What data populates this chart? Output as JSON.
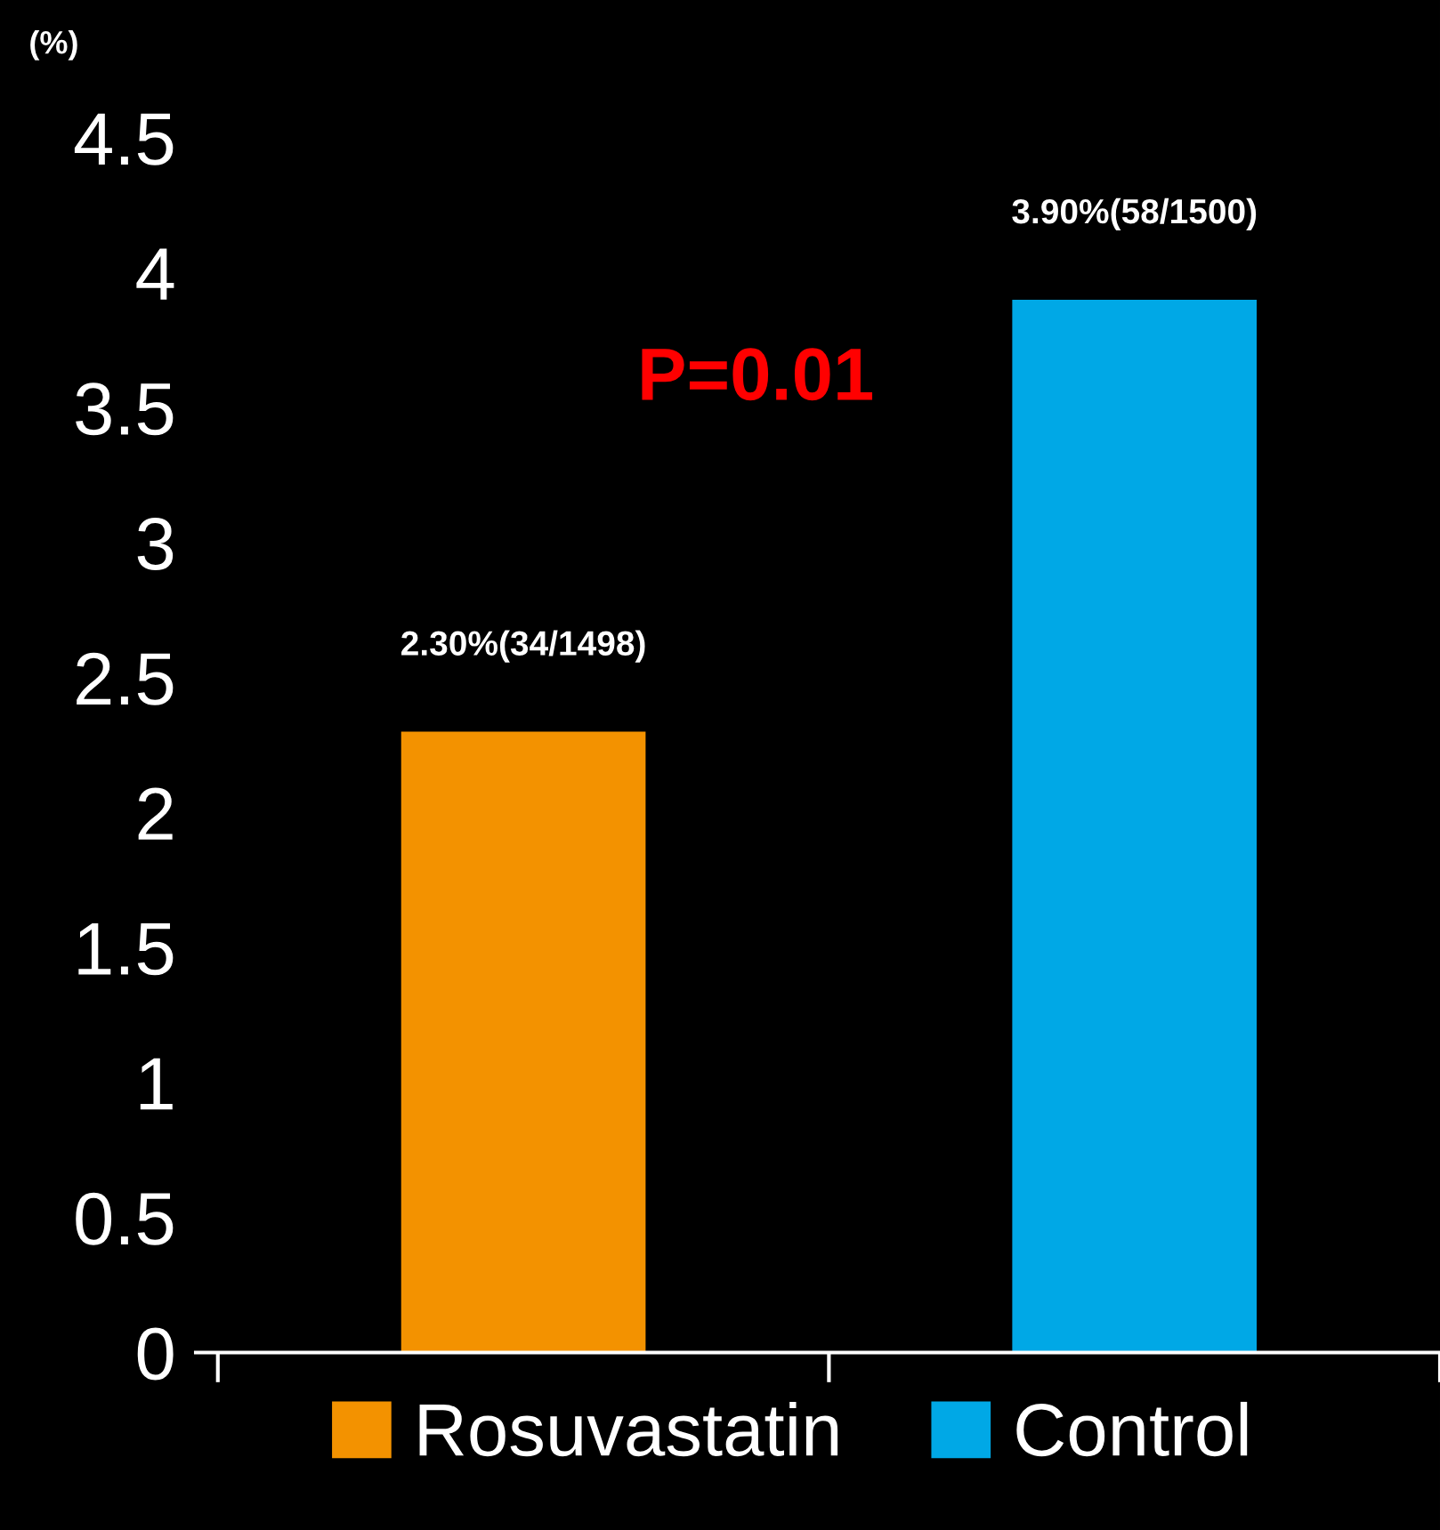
{
  "chart_data": {
    "type": "bar",
    "ylabel": "(%)",
    "categories": [
      null,
      null
    ],
    "series": [
      {
        "name": "Rosuvastatin",
        "color": "#f39200",
        "values": [
          2.3,
          null
        ],
        "value_labels": [
          "2.30%(34/1498)",
          null
        ]
      },
      {
        "name": "Control",
        "color": "#00a8e6",
        "values": [
          null,
          3.9
        ],
        "value_labels": [
          null,
          "3.90%(58/1500)"
        ]
      }
    ],
    "ylim": [
      0,
      4.5
    ],
    "yticks": [
      0,
      0.5,
      1,
      1.5,
      2,
      2.5,
      3,
      3.5,
      4,
      4.5
    ],
    "annotations": [
      "P=0.01"
    ],
    "grid": false,
    "legend": "bottom"
  }
}
